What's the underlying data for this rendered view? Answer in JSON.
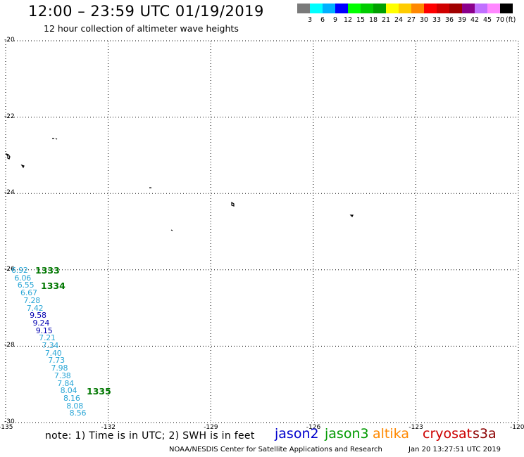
{
  "header": {
    "title": "12:00 – 23:59 UTC 01/19/2019",
    "subtitle": "12 hour collection of altimeter wave heights"
  },
  "colorbar": {
    "colors": [
      "#7a7a7a",
      "#00ffff",
      "#00b0ff",
      "#0000ff",
      "#00ff00",
      "#00cc00",
      "#00a000",
      "#ffff00",
      "#ffcc00",
      "#ff8800",
      "#ff0000",
      "#d00000",
      "#a00000",
      "#8b008b",
      "#c070ff",
      "#ff88ff",
      "#000000"
    ],
    "labels": [
      "3",
      "6",
      "9",
      "12",
      "15",
      "18",
      "21",
      "24",
      "27",
      "30",
      "33",
      "36",
      "39",
      "42",
      "45",
      "70"
    ],
    "unit": "(ft)"
  },
  "map": {
    "lat_labels": [
      "-20",
      "-22",
      "-24",
      "-26",
      "-28",
      "-30"
    ],
    "lon_labels": [
      "-135",
      "-132",
      "-129",
      "-126",
      "-123",
      "-120"
    ]
  },
  "wave_heights": [
    {
      "value": "6.92",
      "color": "#2aa6d6"
    },
    {
      "value": "6.06",
      "color": "#2aa6d6"
    },
    {
      "value": "6.55",
      "color": "#2aa6d6"
    },
    {
      "value": "6.67",
      "color": "#2aa6d6"
    },
    {
      "value": "7.28",
      "color": "#2aa6d6"
    },
    {
      "value": "7.42",
      "color": "#2aa6d6"
    },
    {
      "value": "9.58",
      "color": "#0000b0"
    },
    {
      "value": "9.24",
      "color": "#0000b0"
    },
    {
      "value": "9.15",
      "color": "#0000b0"
    },
    {
      "value": "7.21",
      "color": "#2aa6d6"
    },
    {
      "value": "7.34",
      "color": "#2aa6d6"
    },
    {
      "value": "7.40",
      "color": "#2aa6d6"
    },
    {
      "value": "7.73",
      "color": "#2aa6d6"
    },
    {
      "value": "7.98",
      "color": "#2aa6d6"
    },
    {
      "value": "7.38",
      "color": "#2aa6d6"
    },
    {
      "value": "7.84",
      "color": "#2aa6d6"
    },
    {
      "value": "8.04",
      "color": "#2aa6d6"
    },
    {
      "value": "8.16",
      "color": "#2aa6d6"
    },
    {
      "value": "8.08",
      "color": "#2aa6d6"
    },
    {
      "value": "8.56",
      "color": "#2aa6d6"
    }
  ],
  "pass_times": [
    "1333",
    "1334",
    "1335"
  ],
  "footer": {
    "note": "note: 1) Time is in UTC; 2) SWH is in feet",
    "satellites": [
      {
        "name": "jason2",
        "color": "#0000cc"
      },
      {
        "name": "jason3",
        "color": "#009900"
      },
      {
        "name": "altika",
        "color": "#ff8800"
      },
      {
        "name": "cryosat",
        "color": "#cc0000"
      },
      {
        "name": "s3a",
        "color": "#8b0000"
      }
    ],
    "credit": "NOAA/NESDIS Center for Satellite Applications and Research",
    "timestamp": "Jan 20 13:27:51 UTC 2019"
  }
}
